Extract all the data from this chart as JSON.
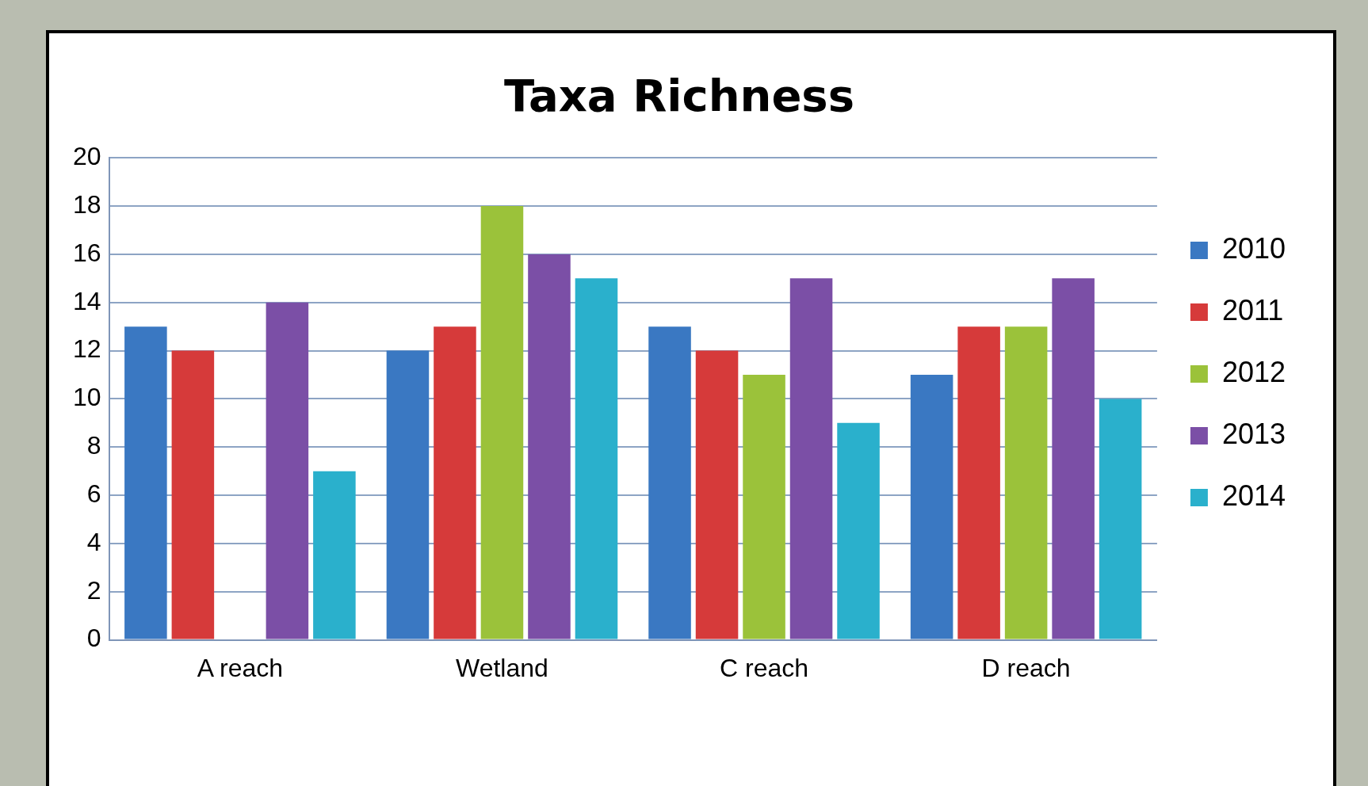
{
  "chart_data": {
    "type": "bar",
    "title": "Taxa Richness",
    "categories": [
      "A reach",
      "Wetland",
      "C reach",
      "D reach"
    ],
    "series": [
      {
        "name": "2010",
        "color": "#3a78c2",
        "values": [
          13,
          12,
          13,
          11
        ]
      },
      {
        "name": "2011",
        "color": "#d63a3a",
        "values": [
          12,
          13,
          12,
          13
        ]
      },
      {
        "name": "2012",
        "color": "#9bc23a",
        "values": [
          null,
          18,
          11,
          13
        ]
      },
      {
        "name": "2013",
        "color": "#7b4fa6",
        "values": [
          14,
          16,
          15,
          15
        ]
      },
      {
        "name": "2014",
        "color": "#2ab0cc",
        "values": [
          7,
          15,
          9,
          10
        ]
      }
    ],
    "ylim": [
      0,
      20
    ],
    "yticks": [
      0,
      2,
      4,
      6,
      8,
      10,
      12,
      14,
      16,
      18,
      20
    ],
    "grid": "y",
    "legend": "right"
  }
}
